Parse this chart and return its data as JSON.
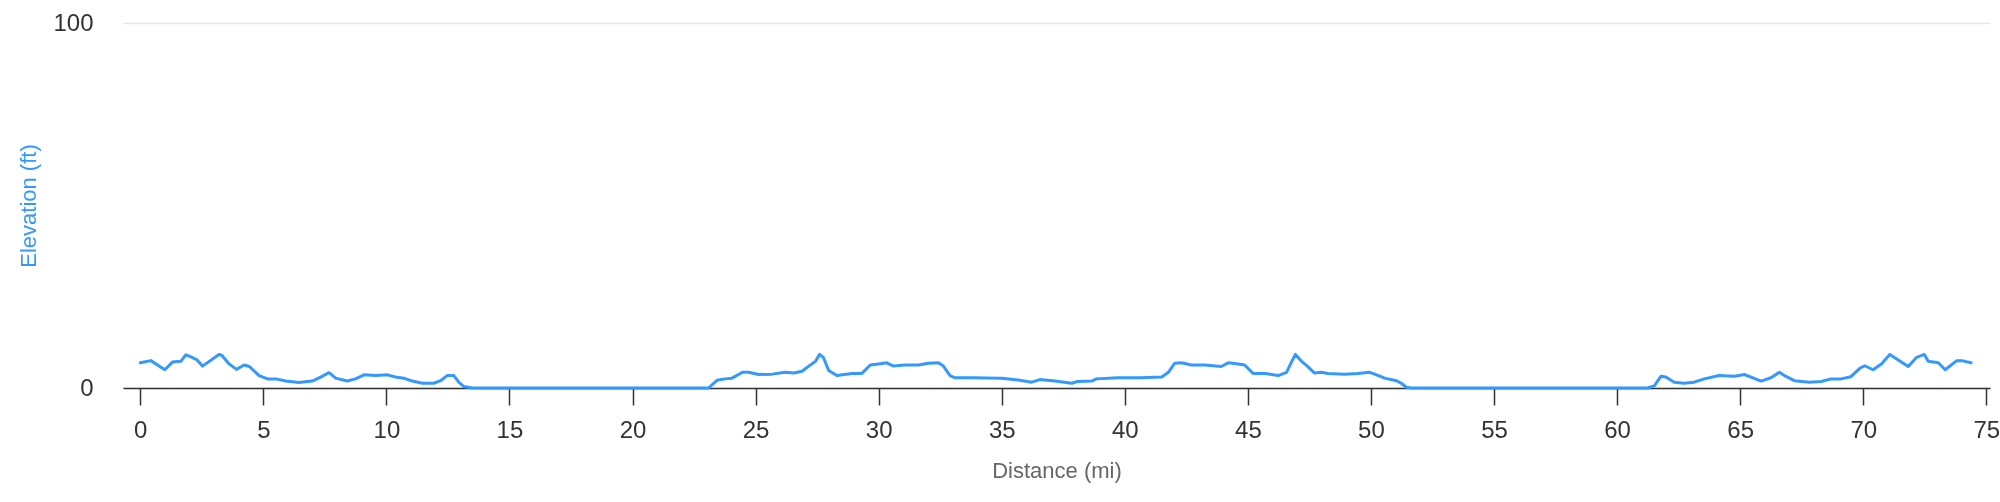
{
  "chart_data": {
    "type": "line",
    "xlabel": "Distance (mi)",
    "ylabel": "Elevation (ft)",
    "xlim": [
      -0.7,
      75.15
    ],
    "xticks": [
      0,
      5,
      10,
      15,
      20,
      25,
      30,
      35,
      40,
      45,
      50,
      55,
      60,
      65,
      70,
      75
    ],
    "ylim": [
      0,
      100
    ],
    "yticks": [
      0,
      100
    ],
    "grid": "y",
    "series": [
      {
        "color": "#3399ff",
        "x": [
          0,
          0.43,
          1.0,
          1.31,
          1.65,
          1.85,
          2.06,
          2.29,
          2.53,
          3.2,
          3.32,
          3.61,
          3.91,
          4.22,
          4.43,
          4.83,
          5.17,
          5.51,
          5.91,
          6.45,
          6.99,
          7.33,
          7.67,
          7.94,
          8.41,
          8.75,
          9.09,
          9.56,
          10.04,
          10.37,
          10.71,
          11.05,
          11.46,
          11.93,
          12.2,
          12.47,
          12.74,
          12.94,
          13.15,
          13.49,
          18,
          23.09,
          23.43,
          23.77,
          24.04,
          24.47,
          24.72,
          25.12,
          25.67,
          26.2,
          26.55,
          26.89,
          27.16,
          27.43,
          27.6,
          27.76,
          27.97,
          28.3,
          28.91,
          29.32,
          29.66,
          30.0,
          30.33,
          30.6,
          31.07,
          31.62,
          32.02,
          32.43,
          32.63,
          32.9,
          33.1,
          33.78,
          35.0,
          35.67,
          36.22,
          36.55,
          37.16,
          37.84,
          38.1,
          38.65,
          38.85,
          39.73,
          40.68,
          41.5,
          41.77,
          42.03,
          42.3,
          42.71,
          43.25,
          43.92,
          44.2,
          44.6,
          44.87,
          45.21,
          45.69,
          46.23,
          46.57,
          46.77,
          46.93,
          47.18,
          47.38,
          47.71,
          47.98,
          48.25,
          48.93,
          49.47,
          49.95,
          50.15,
          50.56,
          51.03,
          51.23,
          51.44,
          51.64,
          56,
          61.24,
          61.51,
          61.78,
          61.98,
          62.32,
          62.72,
          63.13,
          63.54,
          64.15,
          64.76,
          65.17,
          65.85,
          66.25,
          66.59,
          66.8,
          67.2,
          67.81,
          68.29,
          68.7,
          69.1,
          69.5,
          69.86,
          70.06,
          70.4,
          70.74,
          71.08,
          71.42,
          71.83,
          72.17,
          72.48,
          72.64,
          73.05,
          73.33,
          73.8,
          74.0,
          74.38
        ],
        "values": [
          6.9,
          7.5,
          5.0,
          7.1,
          7.3,
          9.1,
          8.5,
          7.8,
          6.0,
          9.2,
          8.9,
          6.6,
          5.1,
          6.3,
          5.9,
          3.4,
          2.5,
          2.5,
          1.9,
          1.5,
          1.9,
          3.0,
          4.2,
          2.7,
          1.9,
          2.5,
          3.6,
          3.4,
          3.6,
          3.0,
          2.7,
          1.9,
          1.3,
          1.3,
          2.0,
          3.4,
          3.4,
          1.6,
          0.4,
          0,
          0,
          0,
          2.1,
          2.5,
          2.7,
          4.3,
          4.3,
          3.7,
          3.8,
          4.3,
          4.1,
          4.6,
          6.0,
          7.3,
          9.2,
          8.3,
          4.8,
          3.4,
          4.0,
          4.0,
          6.3,
          6.6,
          6.9,
          6.0,
          6.3,
          6.3,
          6.8,
          6.9,
          6.0,
          3.4,
          2.8,
          2.8,
          2.7,
          2.2,
          1.6,
          2.3,
          1.9,
          1.3,
          1.8,
          1.9,
          2.5,
          2.8,
          2.8,
          3.0,
          4.3,
          6.8,
          6.9,
          6.3,
          6.3,
          5.9,
          6.9,
          6.6,
          6.3,
          4.0,
          4.0,
          3.4,
          4.3,
          7.1,
          9.2,
          7.3,
          6.2,
          4.1,
          4.3,
          4.0,
          3.8,
          4.0,
          4.3,
          3.8,
          2.7,
          2.0,
          1.3,
          0.2,
          0,
          0,
          0,
          0.6,
          3.2,
          3.0,
          1.6,
          1.3,
          1.6,
          2.5,
          3.4,
          3.2,
          3.7,
          1.9,
          2.8,
          4.3,
          3.4,
          2.0,
          1.6,
          1.8,
          2.5,
          2.5,
          3.1,
          5.4,
          6.1,
          5.0,
          6.6,
          9.2,
          7.7,
          5.9,
          8.4,
          9.2,
          7.3,
          6.9,
          5.0,
          7.5,
          7.5,
          6.9
        ]
      }
    ]
  }
}
